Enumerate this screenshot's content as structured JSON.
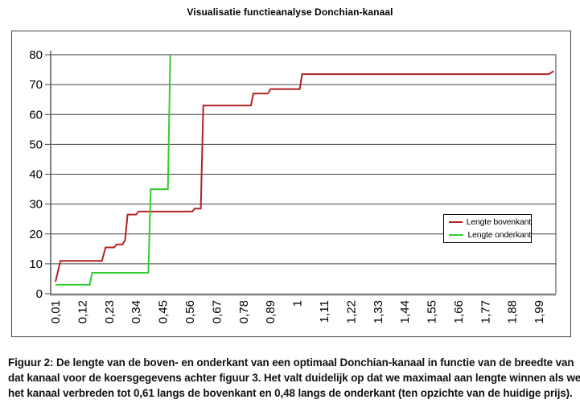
{
  "chart_data": {
    "type": "line",
    "title": "Visualisatie functieanalyse Donchian-kanaal",
    "xlabel": "",
    "ylabel": "",
    "ylim": [
      0,
      80
    ],
    "xlim": [
      -0.01,
      2.06
    ],
    "grid": "horizontal",
    "legend_position": "middle-right",
    "y_ticks": [
      0,
      10,
      20,
      30,
      40,
      50,
      60,
      70,
      80
    ],
    "x_tick_values": [
      0.01,
      0.12,
      0.23,
      0.34,
      0.45,
      0.56,
      0.67,
      0.78,
      0.89,
      1.0,
      1.11,
      1.22,
      1.33,
      1.44,
      1.55,
      1.66,
      1.77,
      1.88,
      1.99
    ],
    "x_tick_labels": [
      "0,01",
      "0,12",
      "0,23",
      "0,34",
      "0,45",
      "0,56",
      "0,67",
      "0,78",
      "0,89",
      "1",
      "1,11",
      "1,22",
      "1,33",
      "1,44",
      "1,55",
      "1,66",
      "1,77",
      "1,88",
      "1,99"
    ],
    "series": [
      {
        "name": "Lengte bovenkant",
        "color": "#b22222",
        "points": [
          [
            0.01,
            4
          ],
          [
            0.03,
            11
          ],
          [
            0.2,
            11
          ],
          [
            0.215,
            15.5
          ],
          [
            0.25,
            15.5
          ],
          [
            0.26,
            16.5
          ],
          [
            0.285,
            16.5
          ],
          [
            0.295,
            18
          ],
          [
            0.305,
            26.5
          ],
          [
            0.34,
            26.5
          ],
          [
            0.35,
            27.5
          ],
          [
            0.57,
            27.5
          ],
          [
            0.58,
            28.5
          ],
          [
            0.605,
            28.5
          ],
          [
            0.615,
            63
          ],
          [
            0.81,
            63
          ],
          [
            0.82,
            67
          ],
          [
            0.88,
            67
          ],
          [
            0.89,
            68.5
          ],
          [
            1.01,
            68.5
          ],
          [
            1.02,
            73.5
          ],
          [
            2.03,
            73.5
          ],
          [
            2.05,
            74.5
          ]
        ]
      },
      {
        "name": "Lengte onderkant",
        "color": "#33cc33",
        "points": [
          [
            0.01,
            3
          ],
          [
            0.15,
            3
          ],
          [
            0.16,
            7
          ],
          [
            0.39,
            7
          ],
          [
            0.4,
            35
          ],
          [
            0.47,
            35
          ],
          [
            0.48,
            80
          ]
        ]
      }
    ]
  },
  "legend": {
    "items": [
      {
        "label": "Lengte bovenkant",
        "color": "#b22222"
      },
      {
        "label": "Lengte onderkant",
        "color": "#33cc33"
      }
    ]
  },
  "caption": {
    "lines": [
      "Figuur 2: De lengte van de boven- en onderkant van een optimaal Donchian-kanaal in functie van de breedte van",
      "dat kanaal voor de koersgegevens achter figuur 3. Het valt duidelijk op dat we maximaal aan lengte winnen als we",
      "het kanaal verbreden tot 0,61 langs de bovenkant en 0,48 langs de onderkant (ten opzichte van de huidige prijs)."
    ]
  }
}
